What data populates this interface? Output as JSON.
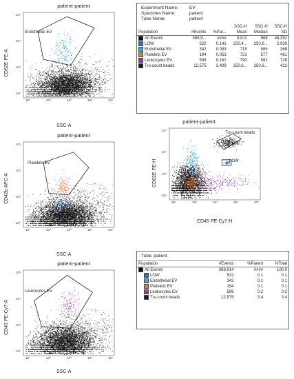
{
  "colors": {
    "all_events": "#111111",
    "low": "#2a6fd6",
    "endothelial": "#3fa7d9",
    "platelets": "#e57b35",
    "leukocytes": "#8e3fb4",
    "trucount": "#1a1a1a"
  },
  "plots": [
    {
      "title": "patient-patient",
      "xlabel": "SSC-A",
      "ylabel": "CD62E PE-A",
      "gate": "Endothelial EV"
    },
    {
      "title": "patient-patient",
      "xlabel": "SSC-A",
      "ylabel": "CD42b APC-A",
      "gate": "Platelets EV"
    },
    {
      "title": "patient-patient",
      "xlabel": "SSC-A",
      "ylabel": "CD45 PE-Cy7-A",
      "gate": "Leukocytes EV"
    },
    {
      "title": "patient-patient",
      "xlabel": "CD45 PE-Cy7-H",
      "ylabel": "CD62E PE-H",
      "gate": "Tru-count beads",
      "gate2": "LOW"
    }
  ],
  "ticks": {
    "x": [
      "10¹",
      "10²",
      "10³",
      "10⁴",
      "10⁵"
    ],
    "y": [
      "10⁵",
      "10⁴",
      "10³",
      "10²"
    ]
  },
  "stats_table": {
    "header": [
      {
        "label": "Experiment Name:",
        "value": "EV"
      },
      {
        "label": "Specimen Name:",
        "value": "patient"
      },
      {
        "label": "Tube Name:",
        "value": "patient"
      }
    ],
    "columns": [
      "Population",
      "#Events",
      "%Par...",
      "SSC-H\nMean",
      "SSC-H\nMedian",
      "SSC-H\nSD"
    ],
    "rows": [
      {
        "name": "All Events",
        "events": "368,9...",
        "par": "####",
        "mean": "9,811",
        "median": "568",
        "sd": "46,352",
        "color": "#111111"
      },
      {
        "name": "LOW",
        "events": "522",
        "par": "0.141",
        "mean": "250,4...",
        "median": "250,6...",
        "sd": "2,939",
        "color": "#2a6fd6"
      },
      {
        "name": "Endothelial EV",
        "events": "342",
        "par": "0.093",
        "mean": "715",
        "median": "585",
        "sd": "368",
        "color": "#3fa7d9"
      },
      {
        "name": "Platelets EV",
        "events": "194",
        "par": "0.053",
        "mean": "721",
        "median": "577",
        "sd": "461",
        "color": "#e57b35"
      },
      {
        "name": "Leukocytes EV",
        "events": "599",
        "par": "0.162",
        "mean": "790",
        "median": "582",
        "sd": "728",
        "color": "#8e3fb4"
      },
      {
        "name": "Tru-count beads",
        "events": "12,575",
        "par": "3.409",
        "mean": "250,6...",
        "median": "250,6...",
        "sd": "422",
        "color": "#1a1a1a"
      }
    ]
  },
  "summary_table": {
    "tube_label": "Tube:",
    "tube_value": "patient",
    "columns": [
      "Population",
      "#Events",
      "%Parent",
      "%Total"
    ],
    "rows": [
      {
        "name": "All Events",
        "events": "368,914",
        "parent": "####",
        "total": "100.0",
        "color": "#111111",
        "indent": 0
      },
      {
        "name": "LOW",
        "events": "522",
        "parent": "0.1",
        "total": "0.1",
        "color": "#2a6fd6",
        "indent": 1
      },
      {
        "name": "Endothelial EV",
        "events": "342",
        "parent": "0.1",
        "total": "0.1",
        "color": "#3fa7d9",
        "indent": 1
      },
      {
        "name": "Platelets EV",
        "events": "194",
        "parent": "0.1",
        "total": "0.1",
        "color": "#e57b35",
        "indent": 1
      },
      {
        "name": "Leukocytes EV",
        "events": "599",
        "parent": "0.2",
        "total": "0.2",
        "color": "#8e3fb4",
        "indent": 1
      },
      {
        "name": "Tru-count beads",
        "events": "12,575",
        "parent": "3.4",
        "total": "3.4",
        "color": "#1a1a1a",
        "indent": 1
      }
    ]
  }
}
